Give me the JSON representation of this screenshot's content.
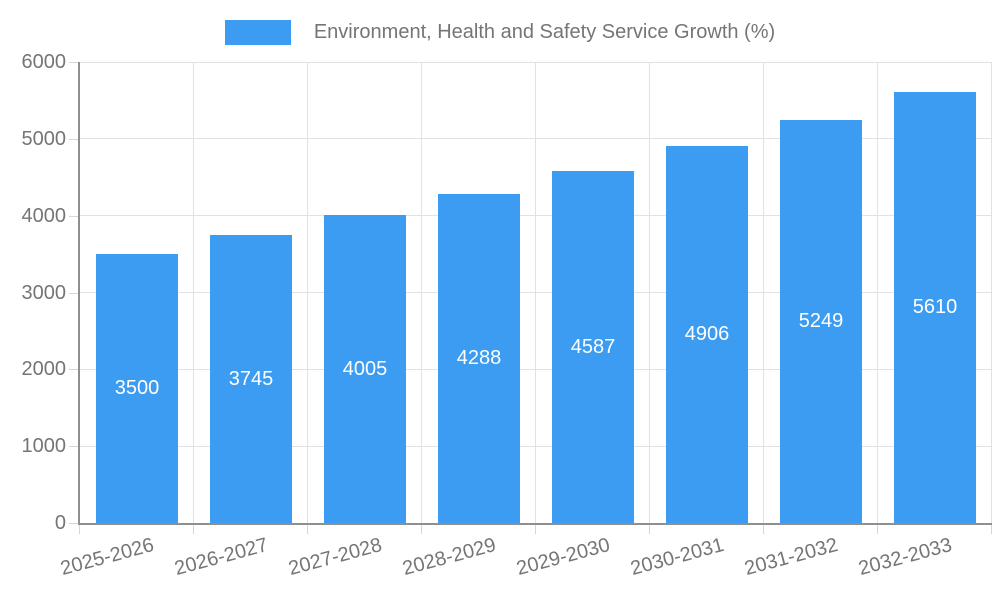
{
  "chart_data": {
    "type": "bar",
    "title": "Environment, Health and Safety Service Growth (%)",
    "categories": [
      "2025-2026",
      "2026-2027",
      "2027-2028",
      "2028-2029",
      "2029-2030",
      "2030-2031",
      "2031-2032",
      "2032-2033"
    ],
    "values": [
      3500,
      3745,
      4005,
      4288,
      4587,
      4906,
      5249,
      5610
    ],
    "value_labels": [
      "3500",
      "3745",
      "4005",
      "4288",
      "4587",
      "4906",
      "5249",
      "5610"
    ],
    "xlabel": "",
    "ylabel": "",
    "ylim": [
      0,
      6000
    ],
    "y_ticks": [
      0,
      1000,
      2000,
      3000,
      4000,
      5000,
      6000
    ],
    "y_tick_labels": [
      "0",
      "1000",
      "2000",
      "3000",
      "4000",
      "5000",
      "6000"
    ],
    "grid": true,
    "legend_position": "top",
    "x_label_rotation_deg": -15,
    "colors": {
      "bar": "#3b9cf2",
      "value_label": "#ffffff",
      "axis_text": "#757575",
      "grid_line": "#e2e2e2",
      "axis_line": "#8f8f8f",
      "tick_mark": "#d6d6d6",
      "background": "#ffffff"
    }
  }
}
